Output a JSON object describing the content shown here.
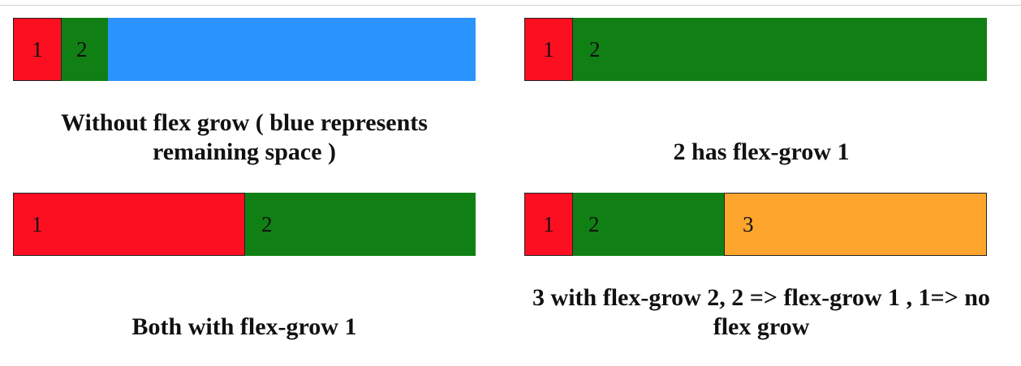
{
  "colors": {
    "red": "#fc0f21",
    "green": "#108014",
    "blue": "#2b93fd",
    "orange": "#fea52d"
  },
  "examples": [
    {
      "items": [
        {
          "label": "1",
          "color": "red",
          "grow": 0
        },
        {
          "label": "2",
          "color": "green",
          "grow": 0
        },
        {
          "label": "",
          "color": "blue",
          "grow": 1
        }
      ],
      "caption": "Without flex grow ( blue represents remaining space )"
    },
    {
      "items": [
        {
          "label": "1",
          "color": "red",
          "grow": 0
        },
        {
          "label": "2",
          "color": "green",
          "grow": 1
        }
      ],
      "caption": "2 has flex-grow 1"
    },
    {
      "items": [
        {
          "label": "1",
          "color": "red",
          "grow": 1
        },
        {
          "label": "2",
          "color": "green",
          "grow": 1
        }
      ],
      "caption": "Both with flex-grow 1"
    },
    {
      "items": [
        {
          "label": "1",
          "color": "red",
          "grow": 0
        },
        {
          "label": "2",
          "color": "green",
          "grow": 1
        },
        {
          "label": "3",
          "color": "orange",
          "grow": 2
        }
      ],
      "caption": "3 with flex-grow 2, 2 => flex-grow 1 , 1=> no flex grow"
    }
  ]
}
